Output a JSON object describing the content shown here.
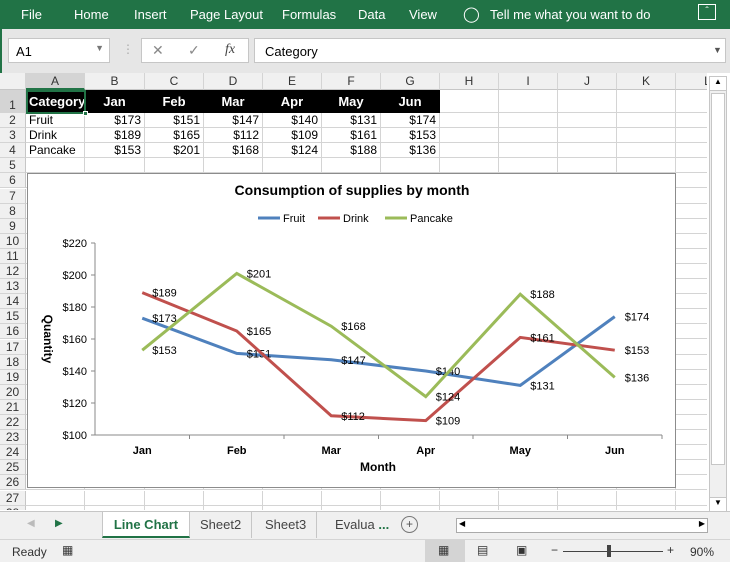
{
  "ribbon": {
    "menu": [
      "File",
      "Home",
      "Insert",
      "Page Layout",
      "Formulas",
      "Data",
      "View"
    ],
    "tell_me": "Tell me what you want to do"
  },
  "formula_bar": {
    "name_box": "A1",
    "fx": "fx",
    "value": "Category"
  },
  "columns": [
    "A",
    "B",
    "C",
    "D",
    "E",
    "F",
    "G",
    "H",
    "I",
    "J",
    "K",
    "L"
  ],
  "sheet": {
    "header": [
      "Category",
      "Jan",
      "Feb",
      "Mar",
      "Apr",
      "May",
      "Jun"
    ],
    "rows": [
      [
        "Fruit",
        "$173",
        "$151",
        "$147",
        "$140",
        "$131",
        "$174"
      ],
      [
        "Drink",
        "$189",
        "$165",
        "$112",
        "$109",
        "$161",
        "$153"
      ],
      [
        "Pancake",
        "$153",
        "$201",
        "$168",
        "$124",
        "$188",
        "$136"
      ]
    ]
  },
  "chart_data": {
    "type": "line",
    "title": "Consumption of supplies by month",
    "xlabel": "Month",
    "ylabel": "Quantity",
    "categories": [
      "Jan",
      "Feb",
      "Mar",
      "Apr",
      "May",
      "Jun"
    ],
    "ylim": [
      100,
      220
    ],
    "yticks": [
      "$100",
      "$120",
      "$140",
      "$160",
      "$180",
      "$200",
      "$220"
    ],
    "legend": "top",
    "grid": false,
    "series": [
      {
        "name": "Fruit",
        "color": "#4f81bd",
        "values": [
          173,
          151,
          147,
          140,
          131,
          174
        ]
      },
      {
        "name": "Drink",
        "color": "#c0504d",
        "values": [
          189,
          165,
          112,
          109,
          161,
          153
        ]
      },
      {
        "name": "Pancake",
        "color": "#9bbb59",
        "values": [
          153,
          201,
          168,
          124,
          188,
          136
        ]
      }
    ]
  },
  "tabs": {
    "items": [
      "Line Chart",
      "Sheet2",
      "Sheet3",
      "Evalua"
    ],
    "more": "...",
    "active": "Line Chart"
  },
  "status": {
    "ready": "Ready",
    "zoom": "90%"
  }
}
